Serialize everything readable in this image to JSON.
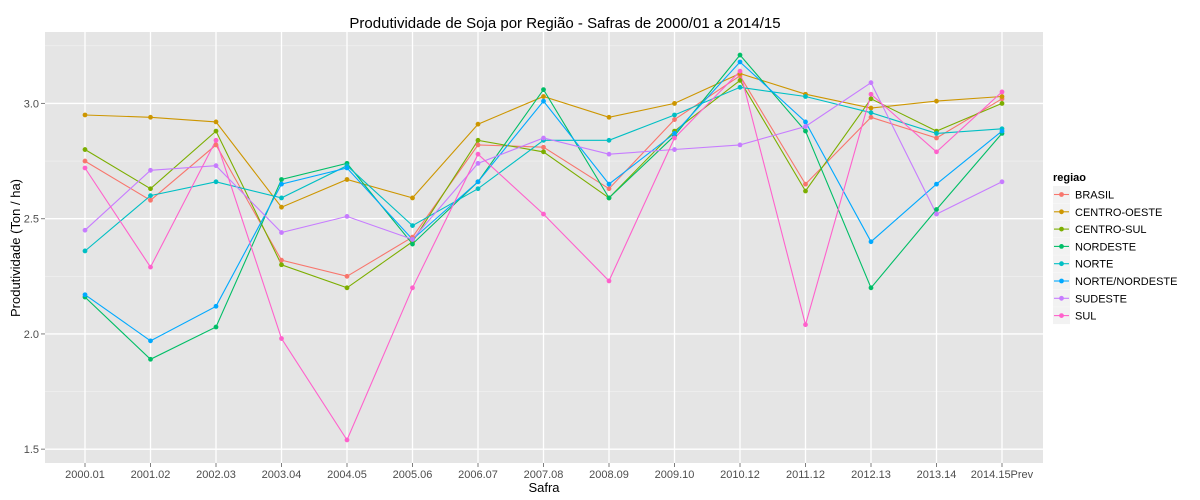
{
  "chart_data": {
    "type": "line",
    "title": "Produtividade de Soja por Região - Safras de 2000/01 a 2014/15",
    "xlabel": "Safra",
    "ylabel": "Produtividade (Ton / ha)",
    "categories": [
      "2000.01",
      "2001.02",
      "2002.03",
      "2003.04",
      "2004.05",
      "2005.06",
      "2006.07",
      "2007.08",
      "2008.09",
      "2009.10",
      "2010.12",
      "2011.12",
      "2012.13",
      "2013.14",
      "2014.15Prev"
    ],
    "ylim": [
      1.44,
      3.31
    ],
    "yticks": [
      1.5,
      2.0,
      2.5,
      3.0
    ],
    "ytick_labels": [
      "1.5",
      "2.0",
      "2.5",
      "3.0"
    ],
    "grid": true,
    "legend_position": "right",
    "legend_title": "regiao",
    "series": [
      {
        "name": "BRASIL",
        "color": "#F8766D",
        "values": [
          2.75,
          2.58,
          2.82,
          2.32,
          2.25,
          2.42,
          2.82,
          2.81,
          2.63,
          2.93,
          3.12,
          2.65,
          2.94,
          2.85,
          3.02
        ]
      },
      {
        "name": "CENTRO-OESTE",
        "color": "#CD9600",
        "values": [
          2.95,
          2.94,
          2.92,
          2.55,
          2.67,
          2.59,
          2.91,
          3.03,
          2.94,
          3.0,
          3.13,
          3.04,
          2.98,
          3.01,
          3.03
        ]
      },
      {
        "name": "CENTRO-SUL",
        "color": "#7CAE00",
        "values": [
          2.8,
          2.63,
          2.88,
          2.3,
          2.2,
          2.4,
          2.84,
          2.79,
          2.59,
          2.88,
          3.1,
          2.62,
          3.02,
          2.88,
          3.0
        ]
      },
      {
        "name": "NORDESTE",
        "color": "#00BE67",
        "values": [
          2.16,
          1.89,
          2.03,
          2.67,
          2.74,
          2.39,
          2.66,
          3.06,
          2.59,
          2.86,
          3.21,
          2.88,
          2.2,
          2.54,
          2.87
        ]
      },
      {
        "name": "NORTE",
        "color": "#00BFC4",
        "values": [
          2.36,
          2.6,
          2.66,
          2.59,
          2.73,
          2.47,
          2.63,
          2.84,
          2.84,
          2.95,
          3.07,
          3.03,
          2.96,
          2.87,
          2.89
        ]
      },
      {
        "name": "NORTE/NORDESTE",
        "color": "#00A9FF",
        "values": [
          2.17,
          1.97,
          2.12,
          2.65,
          2.72,
          2.41,
          2.66,
          3.01,
          2.65,
          2.87,
          3.18,
          2.92,
          2.4,
          2.65,
          2.88
        ]
      },
      {
        "name": "SUDESTE",
        "color": "#C77CFF",
        "values": [
          2.45,
          2.71,
          2.73,
          2.44,
          2.51,
          2.41,
          2.74,
          2.85,
          2.78,
          2.8,
          2.82,
          2.9,
          3.09,
          2.52,
          2.66
        ]
      },
      {
        "name": "SUL",
        "color": "#FF61CC",
        "values": [
          2.72,
          2.29,
          2.84,
          1.98,
          1.54,
          2.2,
          2.78,
          2.52,
          2.23,
          2.85,
          3.14,
          2.04,
          3.04,
          2.79,
          3.05
        ]
      }
    ]
  }
}
